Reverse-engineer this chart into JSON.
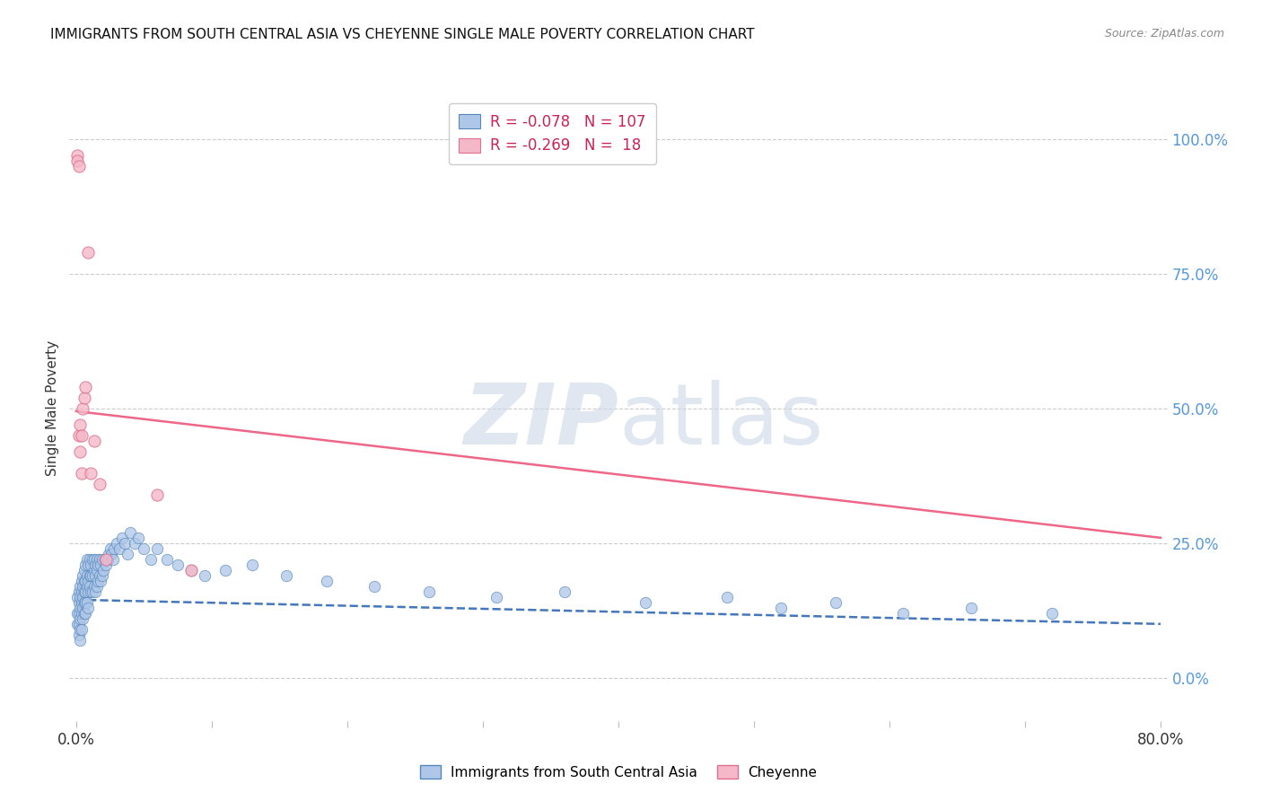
{
  "title": "IMMIGRANTS FROM SOUTH CENTRAL ASIA VS CHEYENNE SINGLE MALE POVERTY CORRELATION CHART",
  "source": "Source: ZipAtlas.com",
  "ylabel": "Single Male Poverty",
  "legend_blue_r": "-0.078",
  "legend_blue_n": "107",
  "legend_pink_r": "-0.269",
  "legend_pink_n": "18",
  "legend_blue_label": "Immigrants from South Central Asia",
  "legend_pink_label": "Cheyenne",
  "blue_color": "#aec6e8",
  "blue_edge": "#5588bb",
  "blue_line": "#4477bb",
  "pink_color": "#f5b8c8",
  "pink_edge": "#e07090",
  "pink_line": "#ee6688",
  "watermark_color": "#ccd8e8",
  "grid_color": "#cccccc",
  "right_tick_color": "#5599dd",
  "blue_scatter_x": [
    0.001,
    0.001,
    0.001,
    0.002,
    0.002,
    0.002,
    0.002,
    0.002,
    0.003,
    0.003,
    0.003,
    0.003,
    0.003,
    0.003,
    0.004,
    0.004,
    0.004,
    0.004,
    0.004,
    0.005,
    0.005,
    0.005,
    0.005,
    0.005,
    0.006,
    0.006,
    0.006,
    0.006,
    0.006,
    0.007,
    0.007,
    0.007,
    0.007,
    0.007,
    0.008,
    0.008,
    0.008,
    0.008,
    0.009,
    0.009,
    0.009,
    0.009,
    0.01,
    0.01,
    0.01,
    0.011,
    0.011,
    0.011,
    0.012,
    0.012,
    0.012,
    0.013,
    0.013,
    0.013,
    0.014,
    0.014,
    0.014,
    0.015,
    0.015,
    0.015,
    0.016,
    0.016,
    0.017,
    0.017,
    0.018,
    0.018,
    0.019,
    0.019,
    0.02,
    0.021,
    0.022,
    0.023,
    0.024,
    0.025,
    0.026,
    0.027,
    0.028,
    0.03,
    0.032,
    0.034,
    0.036,
    0.038,
    0.04,
    0.043,
    0.046,
    0.05,
    0.055,
    0.06,
    0.067,
    0.075,
    0.085,
    0.095,
    0.11,
    0.13,
    0.155,
    0.185,
    0.22,
    0.26,
    0.31,
    0.36,
    0.42,
    0.48,
    0.52,
    0.56,
    0.61,
    0.66,
    0.72
  ],
  "blue_scatter_y": [
    0.15,
    0.12,
    0.1,
    0.16,
    0.14,
    0.12,
    0.1,
    0.08,
    0.17,
    0.15,
    0.13,
    0.11,
    0.09,
    0.07,
    0.18,
    0.16,
    0.14,
    0.12,
    0.09,
    0.19,
    0.17,
    0.15,
    0.13,
    0.11,
    0.2,
    0.18,
    0.16,
    0.14,
    0.12,
    0.21,
    0.18,
    0.16,
    0.14,
    0.12,
    0.22,
    0.19,
    0.17,
    0.14,
    0.21,
    0.18,
    0.16,
    0.13,
    0.22,
    0.19,
    0.17,
    0.21,
    0.19,
    0.16,
    0.22,
    0.19,
    0.16,
    0.22,
    0.2,
    0.17,
    0.21,
    0.19,
    0.16,
    0.22,
    0.2,
    0.17,
    0.21,
    0.18,
    0.22,
    0.19,
    0.21,
    0.18,
    0.22,
    0.19,
    0.2,
    0.22,
    0.21,
    0.22,
    0.23,
    0.24,
    0.23,
    0.22,
    0.24,
    0.25,
    0.24,
    0.26,
    0.25,
    0.23,
    0.27,
    0.25,
    0.26,
    0.24,
    0.22,
    0.24,
    0.22,
    0.21,
    0.2,
    0.19,
    0.2,
    0.21,
    0.19,
    0.18,
    0.17,
    0.16,
    0.15,
    0.16,
    0.14,
    0.15,
    0.13,
    0.14,
    0.12,
    0.13,
    0.12
  ],
  "pink_scatter_x": [
    0.001,
    0.001,
    0.002,
    0.002,
    0.003,
    0.003,
    0.004,
    0.004,
    0.005,
    0.006,
    0.007,
    0.009,
    0.011,
    0.013,
    0.017,
    0.022,
    0.06,
    0.085
  ],
  "pink_scatter_y": [
    0.97,
    0.96,
    0.95,
    0.45,
    0.47,
    0.42,
    0.45,
    0.38,
    0.5,
    0.52,
    0.54,
    0.79,
    0.38,
    0.44,
    0.36,
    0.22,
    0.34,
    0.2
  ],
  "blue_trend_x": [
    0.0,
    0.8
  ],
  "blue_trend_y": [
    0.145,
    0.1
  ],
  "pink_trend_x": [
    0.0,
    0.8
  ],
  "pink_trend_y": [
    0.495,
    0.26
  ],
  "xlim": [
    -0.005,
    0.805
  ],
  "ylim": [
    -0.08,
    1.08
  ],
  "ytick_vals": [
    0.0,
    0.25,
    0.5,
    0.75,
    1.0
  ],
  "ytick_labels": [
    "0.0%",
    "25.0%",
    "50.0%",
    "75.0%",
    "100.0%"
  ],
  "xtick_vals": [
    0.0,
    0.1,
    0.2,
    0.3,
    0.4,
    0.5,
    0.6,
    0.7,
    0.8
  ],
  "xtick_show": [
    0.0,
    0.8
  ]
}
